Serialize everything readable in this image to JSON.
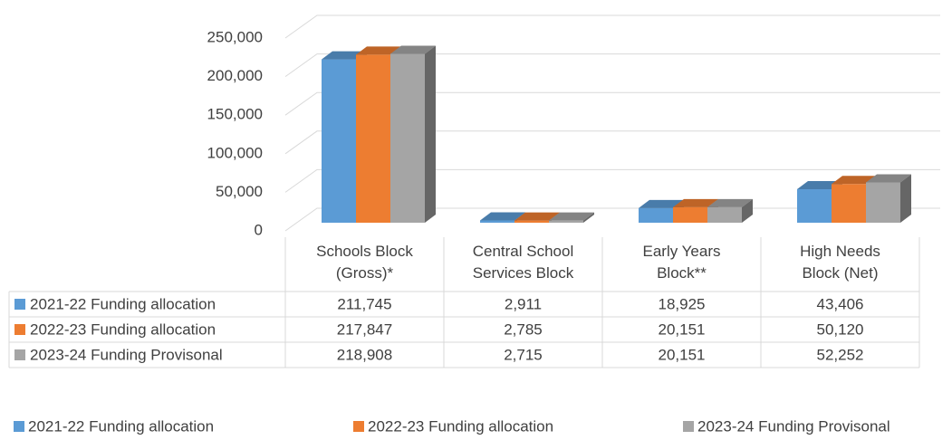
{
  "chart_data": {
    "type": "bar3d",
    "categories": [
      "Schools Block (Gross)*",
      "Central School Services Block",
      "Early Years Block**",
      "High Needs Block (Net)"
    ],
    "series": [
      {
        "name": "2021-22 Funding allocation",
        "color": "#5b9bd5",
        "values": [
          211745,
          2911,
          18925,
          43406
        ],
        "value_labels": [
          "211,745",
          "2,911",
          "18,925",
          "43,406"
        ]
      },
      {
        "name": "2022-23 Funding allocation",
        "color": "#ed7d31",
        "values": [
          217847,
          2785,
          20151,
          50120
        ],
        "value_labels": [
          "217,847",
          "2,785",
          "20,151",
          "50,120"
        ]
      },
      {
        "name": "2023-24 Funding Provisonal",
        "color": "#a5a5a5",
        "values": [
          218908,
          2715,
          20151,
          52252
        ],
        "value_labels": [
          "218,908",
          "2,715",
          "20,151",
          "52,252"
        ]
      }
    ],
    "ylim": [
      0,
      250000
    ],
    "yticks": [
      0,
      {
        "value": 50000,
        "label": "50,000"
      },
      {
        "value": 100000,
        "label": "100,000"
      },
      {
        "value": 150000,
        "label": "150,000"
      },
      {
        "value": 200000,
        "label": "200,000"
      },
      {
        "value": 250000,
        "label": "250,000"
      }
    ],
    "grid": true,
    "legend": "bottom",
    "data_table": true
  }
}
